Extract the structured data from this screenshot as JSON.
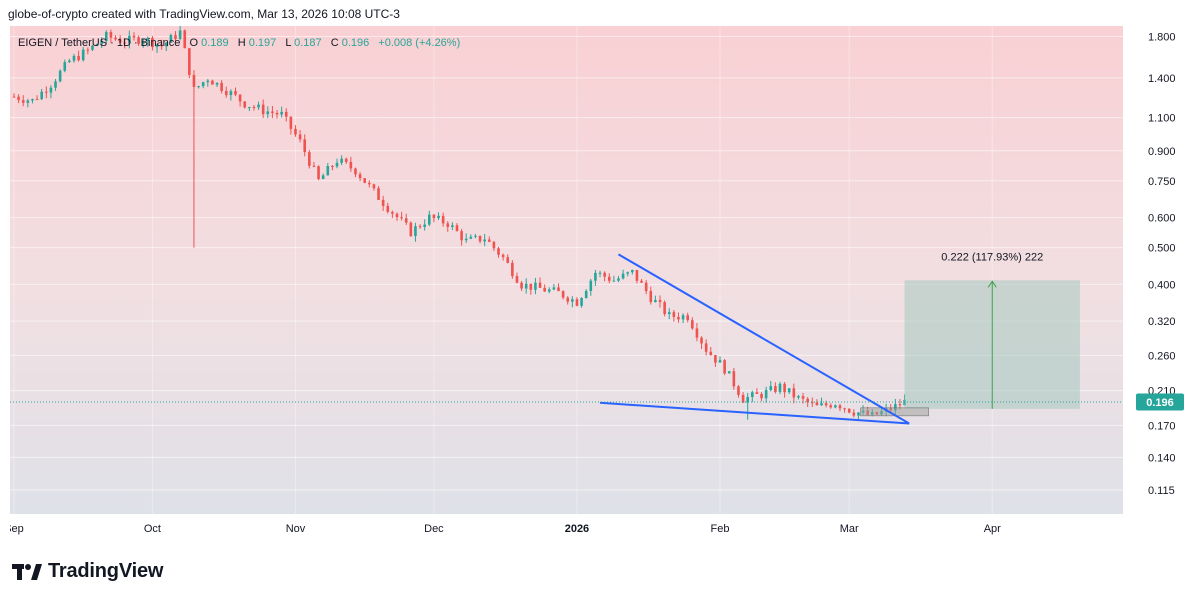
{
  "header": {
    "text": "globe-of-crypto created with TradingView.com, Mar 13, 2026 10:08 UTC-3"
  },
  "legend": {
    "symbol": "EIGEN / TetherUS · 1D · Binance",
    "o_label": "O",
    "o": "0.189",
    "h_label": "H",
    "h": "0.197",
    "l_label": "L",
    "l": "0.187",
    "c_label": "C",
    "c": "0.196",
    "change": "+0.008 (+4.26%)"
  },
  "brand": {
    "name": "TradingView"
  },
  "colors": {
    "up": "#26a69a",
    "down": "#ef5350",
    "trendline": "#2962ff",
    "target_box": "#a5c8c0"
  },
  "chart_data": {
    "type": "candlestick",
    "pair": "EIGEN / TetherUS",
    "interval": "1D",
    "exchange": "Binance",
    "y_scale": "log",
    "ylim": [
      0.103,
      1.85
    ],
    "y_ticks": [
      "1.800",
      "1.400",
      "1.100",
      "0.900",
      "0.750",
      "0.600",
      "0.500",
      "0.400",
      "0.320",
      "0.260",
      "0.210",
      "0.170",
      "0.140",
      "0.115"
    ],
    "x_ticks": [
      "Sep",
      "Oct",
      "Nov",
      "Dec",
      "2026",
      "Feb",
      "Mar",
      "Apr"
    ],
    "x_range": [
      "2025-09-01",
      "2026-04-25"
    ],
    "last_price": "0.196",
    "closes": [
      {
        "d": "2025-09-01",
        "c": 1.25
      },
      {
        "d": "2025-09-05",
        "c": 1.22
      },
      {
        "d": "2025-09-09",
        "c": 1.35
      },
      {
        "d": "2025-09-13",
        "c": 1.55
      },
      {
        "d": "2025-09-17",
        "c": 1.65
      },
      {
        "d": "2025-09-21",
        "c": 1.8
      },
      {
        "d": "2025-09-25",
        "c": 1.75
      },
      {
        "d": "2025-09-29",
        "c": 1.78
      },
      {
        "d": "2025-10-03",
        "c": 1.7
      },
      {
        "d": "2025-10-07",
        "c": 1.85
      },
      {
        "d": "2025-10-10",
        "c": 1.3
      },
      {
        "d": "2025-10-13",
        "c": 1.4
      },
      {
        "d": "2025-10-17",
        "c": 1.3
      },
      {
        "d": "2025-10-21",
        "c": 1.2
      },
      {
        "d": "2025-10-25",
        "c": 1.15
      },
      {
        "d": "2025-10-29",
        "c": 1.12
      },
      {
        "d": "2025-11-02",
        "c": 0.95
      },
      {
        "d": "2025-11-06",
        "c": 0.75
      },
      {
        "d": "2025-11-10",
        "c": 0.85
      },
      {
        "d": "2025-11-14",
        "c": 0.8
      },
      {
        "d": "2025-11-18",
        "c": 0.7
      },
      {
        "d": "2025-11-22",
        "c": 0.62
      },
      {
        "d": "2025-11-26",
        "c": 0.55
      },
      {
        "d": "2025-11-30",
        "c": 0.6
      },
      {
        "d": "2025-12-04",
        "c": 0.58
      },
      {
        "d": "2025-12-08",
        "c": 0.52
      },
      {
        "d": "2025-12-12",
        "c": 0.53
      },
      {
        "d": "2025-12-16",
        "c": 0.47
      },
      {
        "d": "2025-12-20",
        "c": 0.4
      },
      {
        "d": "2025-12-24",
        "c": 0.39
      },
      {
        "d": "2025-12-28",
        "c": 0.38
      },
      {
        "d": "2026-01-01",
        "c": 0.36
      },
      {
        "d": "2026-01-05",
        "c": 0.43
      },
      {
        "d": "2026-01-09",
        "c": 0.41
      },
      {
        "d": "2026-01-13",
        "c": 0.43
      },
      {
        "d": "2026-01-17",
        "c": 0.37
      },
      {
        "d": "2026-01-21",
        "c": 0.33
      },
      {
        "d": "2026-01-25",
        "c": 0.33
      },
      {
        "d": "2026-01-29",
        "c": 0.27
      },
      {
        "d": "2026-02-02",
        "c": 0.24
      },
      {
        "d": "2026-02-06",
        "c": 0.2
      },
      {
        "d": "2026-02-10",
        "c": 0.205
      },
      {
        "d": "2026-02-14",
        "c": 0.215
      },
      {
        "d": "2026-02-18",
        "c": 0.2
      },
      {
        "d": "2026-02-22",
        "c": 0.19
      },
      {
        "d": "2026-02-26",
        "c": 0.195
      },
      {
        "d": "2026-03-02",
        "c": 0.185
      },
      {
        "d": "2026-03-06",
        "c": 0.18
      },
      {
        "d": "2026-03-10",
        "c": 0.188
      },
      {
        "d": "2026-03-13",
        "c": 0.196
      }
    ],
    "trendlines": [
      {
        "name": "upper",
        "from": {
          "d": "2026-01-10",
          "price": 0.48
        },
        "to": {
          "d": "2026-03-14",
          "price": 0.172
        }
      },
      {
        "name": "lower",
        "from": {
          "d": "2026-01-06",
          "price": 0.195
        },
        "to": {
          "d": "2026-03-14",
          "price": 0.172
        }
      }
    ],
    "target": {
      "label": "0.222 (117.93%) 222",
      "from_date": "2026-03-13",
      "to_date": "2026-04-20",
      "entry": 0.188,
      "target": 0.41
    }
  }
}
